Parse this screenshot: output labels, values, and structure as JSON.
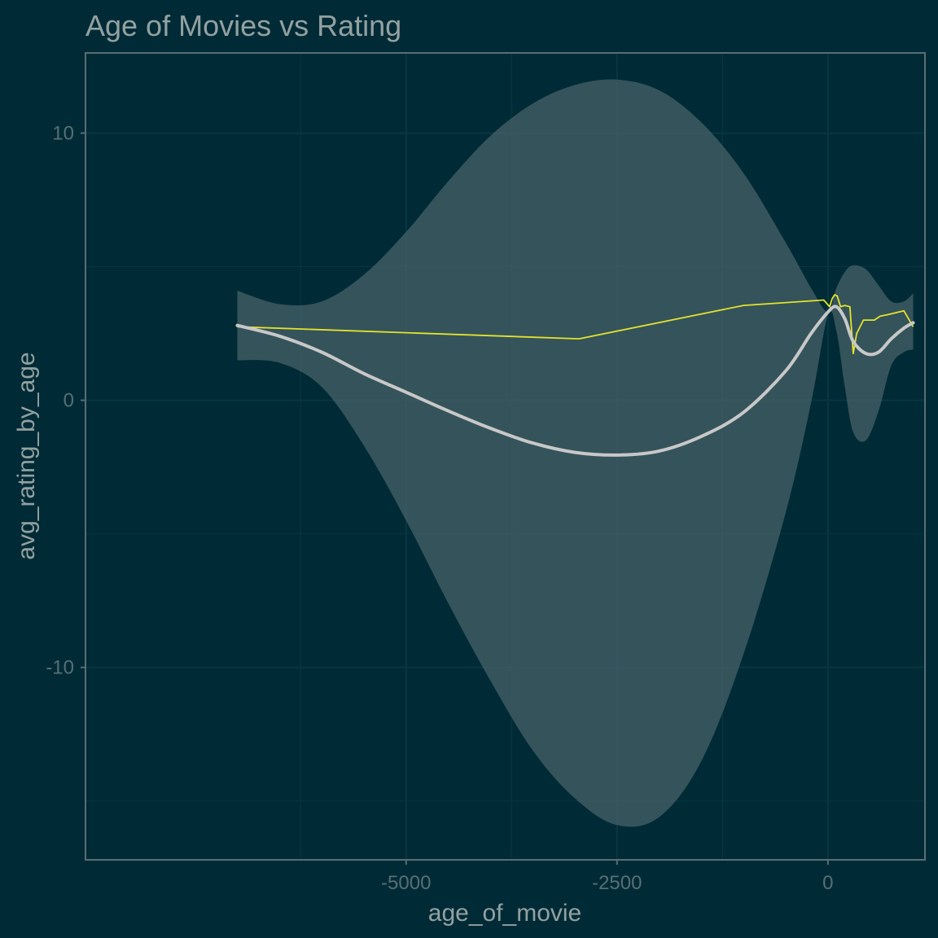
{
  "chart_data": {
    "type": "line",
    "title": "Age of Movies vs Rating",
    "xlabel": "age_of_movie",
    "ylabel": "avg_rating_by_age",
    "xlim": [
      -8800,
      1150
    ],
    "ylim": [
      -17.2,
      13.0
    ],
    "x_ticks": [
      -5000,
      -2500,
      0
    ],
    "x_tick_labels": [
      "-5000",
      "-2500",
      "0"
    ],
    "y_ticks": [
      -10,
      0,
      10
    ],
    "y_tick_labels": [
      "-10",
      "0",
      "10"
    ],
    "grid": true,
    "legend": "none",
    "colors": {
      "background": "#002b36",
      "panel_border": "#586e75",
      "grid": "#073642",
      "ribbon": "#586e75",
      "smooth_line": "#c8c8c8",
      "raw_line": "#e3e32a"
    },
    "series": [
      {
        "role": "raw",
        "x": [
          -7000,
          -2950,
          -1000,
          -50,
          20,
          50,
          80,
          110,
          150,
          200,
          260,
          300,
          340,
          420,
          550,
          620,
          700,
          900,
          1010
        ],
        "y": [
          2.75,
          2.3,
          3.55,
          3.75,
          3.5,
          3.8,
          3.95,
          3.9,
          3.5,
          3.55,
          3.5,
          1.75,
          2.5,
          3.0,
          3.0,
          3.15,
          3.2,
          3.35,
          2.75
        ]
      },
      {
        "role": "smooth",
        "x": [
          -7000,
          -6500,
          -6000,
          -5500,
          -5000,
          -4500,
          -4000,
          -3500,
          -3000,
          -2500,
          -2000,
          -1500,
          -1000,
          -500,
          -200,
          0,
          100,
          200,
          300,
          450,
          600,
          750,
          900,
          1010
        ],
        "y": [
          2.8,
          2.4,
          1.8,
          1.0,
          0.3,
          -0.4,
          -1.05,
          -1.6,
          -1.95,
          -2.05,
          -1.9,
          -1.35,
          -0.45,
          1.1,
          2.5,
          3.3,
          3.5,
          3.05,
          2.2,
          1.75,
          1.8,
          2.3,
          2.7,
          2.9
        ]
      }
    ],
    "ribbon": {
      "x": [
        -7000,
        -6500,
        -6000,
        -5500,
        -5000,
        -4500,
        -4000,
        -3500,
        -3000,
        -2500,
        -2000,
        -1500,
        -1000,
        -500,
        -200,
        0,
        100,
        200,
        300,
        450,
        600,
        750,
        900,
        1010
      ],
      "ymin": [
        1.5,
        1.4,
        0.5,
        -1.7,
        -4.5,
        -7.6,
        -10.5,
        -13.1,
        -14.9,
        -15.9,
        -15.6,
        -13.5,
        -9.5,
        -4.2,
        -0.1,
        3.2,
        2.6,
        0.5,
        -1.2,
        -1.5,
        -0.4,
        1.3,
        1.8,
        1.9
      ],
      "ymax": [
        4.1,
        3.6,
        3.7,
        4.7,
        6.3,
        8.2,
        9.9,
        11.1,
        11.8,
        12.0,
        11.6,
        10.4,
        8.5,
        5.9,
        4.2,
        3.3,
        4.2,
        4.8,
        5.05,
        4.9,
        4.3,
        3.7,
        3.7,
        4.0
      ]
    }
  }
}
